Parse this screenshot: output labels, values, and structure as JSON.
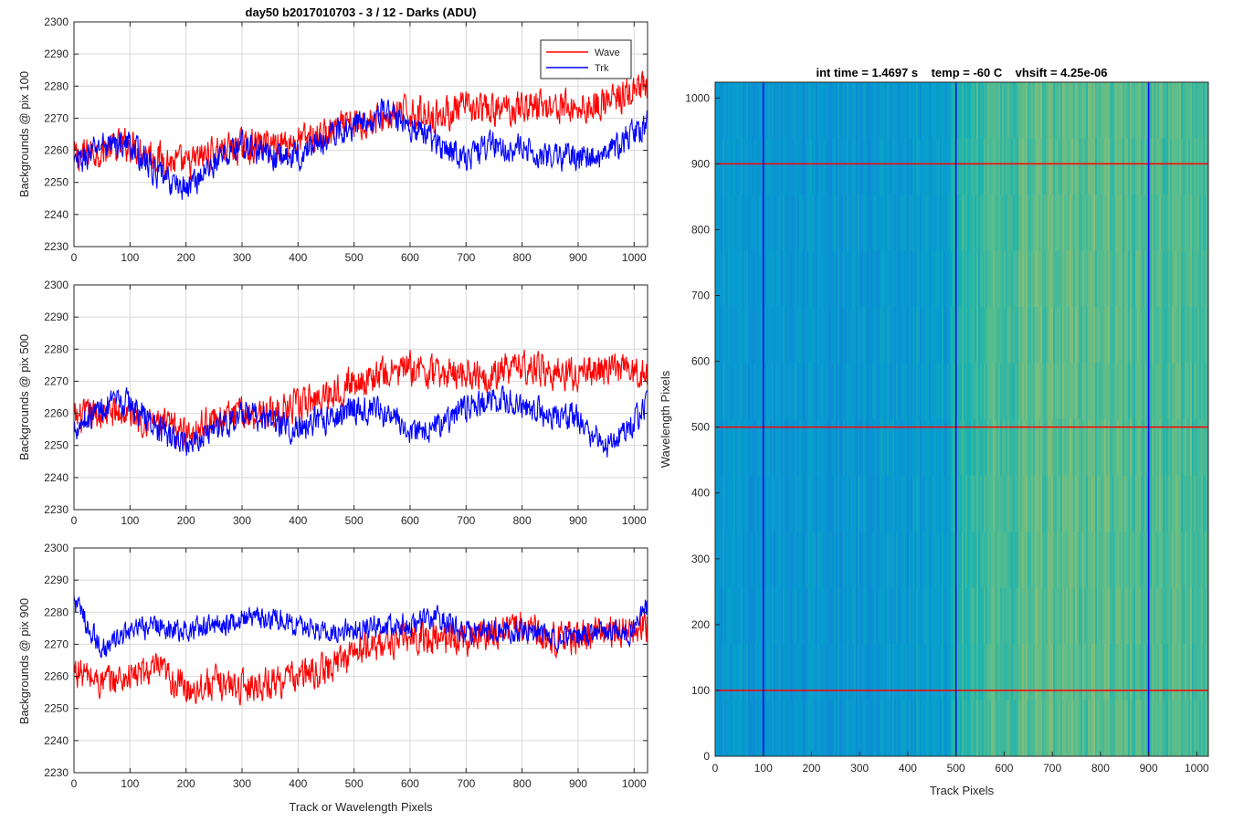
{
  "colors": {
    "wave": "#ff0000",
    "trk": "#0000ff",
    "grid": "#d9d9d9",
    "axes": "#262626"
  },
  "chart_data": [
    {
      "type": "line",
      "title": "day50 b2017010703 - 3 / 12 - Darks (ADU)",
      "xlabel": "",
      "ylabel": "Backgrounds @ pix 100",
      "xlim": [
        0,
        1024
      ],
      "ylim": [
        2230,
        2300
      ],
      "xticks": [
        0,
        100,
        200,
        300,
        400,
        500,
        600,
        700,
        800,
        900,
        1000
      ],
      "yticks": [
        2230,
        2240,
        2250,
        2260,
        2270,
        2280,
        2290,
        2300
      ],
      "grid": true,
      "legend": {
        "position": "top-right",
        "entries": [
          "Wave",
          "Trk"
        ]
      },
      "series": [
        {
          "name": "Wave",
          "color": "#ff0000",
          "x": [
            0,
            50,
            100,
            150,
            200,
            250,
            300,
            350,
            400,
            450,
            500,
            550,
            600,
            650,
            700,
            750,
            800,
            850,
            900,
            950,
            1000,
            1024
          ],
          "y": [
            2258,
            2260,
            2262,
            2258,
            2255,
            2260,
            2261,
            2262,
            2263,
            2265,
            2268,
            2270,
            2272,
            2271,
            2273,
            2272,
            2274,
            2274,
            2273,
            2275,
            2278,
            2279
          ],
          "noise": 7
        },
        {
          "name": "Trk",
          "color": "#0000ff",
          "x": [
            0,
            50,
            100,
            150,
            200,
            250,
            300,
            350,
            400,
            450,
            500,
            550,
            600,
            650,
            700,
            750,
            800,
            850,
            900,
            950,
            1000,
            1024
          ],
          "y": [
            2255,
            2262,
            2262,
            2252,
            2248,
            2256,
            2262,
            2258,
            2258,
            2264,
            2268,
            2272,
            2268,
            2262,
            2258,
            2262,
            2260,
            2258,
            2258,
            2258,
            2266,
            2268
          ],
          "noise": 6
        }
      ]
    },
    {
      "type": "line",
      "title": "",
      "xlabel": "",
      "ylabel": "Backgrounds @ pix 500",
      "xlim": [
        0,
        1024
      ],
      "ylim": [
        2230,
        2300
      ],
      "xticks": [
        0,
        100,
        200,
        300,
        400,
        500,
        600,
        700,
        800,
        900,
        1000
      ],
      "yticks": [
        2230,
        2240,
        2250,
        2260,
        2270,
        2280,
        2290,
        2300
      ],
      "grid": true,
      "series": [
        {
          "name": "Wave",
          "color": "#ff0000",
          "x": [
            0,
            50,
            100,
            150,
            200,
            250,
            300,
            350,
            400,
            450,
            500,
            550,
            600,
            650,
            700,
            750,
            800,
            850,
            900,
            950,
            1000,
            1024
          ],
          "y": [
            2258,
            2260,
            2260,
            2257,
            2254,
            2258,
            2260,
            2260,
            2262,
            2266,
            2270,
            2272,
            2274,
            2272,
            2273,
            2272,
            2275,
            2273,
            2272,
            2274,
            2273,
            2272
          ],
          "noise": 7
        },
        {
          "name": "Trk",
          "color": "#0000ff",
          "x": [
            0,
            50,
            100,
            150,
            200,
            250,
            300,
            350,
            400,
            450,
            500,
            550,
            600,
            650,
            700,
            750,
            800,
            850,
            900,
            950,
            1000,
            1024
          ],
          "y": [
            2256,
            2262,
            2263,
            2255,
            2250,
            2256,
            2259,
            2258,
            2255,
            2258,
            2262,
            2260,
            2255,
            2256,
            2262,
            2264,
            2262,
            2260,
            2258,
            2250,
            2258,
            2262
          ],
          "noise": 6
        }
      ]
    },
    {
      "type": "line",
      "title": "",
      "xlabel": "Track or Wavelength Pixels",
      "ylabel": "Backgrounds @ pix 900",
      "xlim": [
        0,
        1024
      ],
      "ylim": [
        2230,
        2300
      ],
      "xticks": [
        0,
        100,
        200,
        300,
        400,
        500,
        600,
        700,
        800,
        900,
        1000
      ],
      "yticks": [
        2230,
        2240,
        2250,
        2260,
        2270,
        2280,
        2290,
        2300
      ],
      "grid": true,
      "series": [
        {
          "name": "Wave",
          "color": "#ff0000",
          "x": [
            0,
            50,
            100,
            150,
            200,
            250,
            300,
            350,
            400,
            450,
            500,
            550,
            600,
            650,
            700,
            750,
            800,
            850,
            900,
            950,
            1000,
            1024
          ],
          "y": [
            2262,
            2258,
            2260,
            2262,
            2256,
            2258,
            2257,
            2258,
            2260,
            2262,
            2268,
            2270,
            2272,
            2272,
            2272,
            2274,
            2276,
            2272,
            2272,
            2274,
            2274,
            2276
          ],
          "noise": 7
        },
        {
          "name": "Trk",
          "color": "#0000ff",
          "x": [
            0,
            50,
            100,
            150,
            200,
            250,
            300,
            350,
            400,
            450,
            500,
            550,
            600,
            650,
            700,
            750,
            800,
            850,
            900,
            950,
            1000,
            1024
          ],
          "y": [
            2284,
            2268,
            2274,
            2276,
            2274,
            2276,
            2278,
            2278,
            2276,
            2274,
            2275,
            2276,
            2276,
            2278,
            2274,
            2274,
            2274,
            2272,
            2272,
            2274,
            2274,
            2282
          ],
          "noise": 5
        }
      ]
    },
    {
      "type": "heatmap",
      "title": "int time = 1.4697 s    temp = -60 C    vhsift = 4.25e-06",
      "xlabel": "Track Pixels",
      "ylabel": "Wavelength Pixels",
      "xlim": [
        0,
        1024
      ],
      "ylim": [
        0,
        1024
      ],
      "xticks": [
        0,
        100,
        200,
        300,
        400,
        500,
        600,
        700,
        800,
        900,
        1000
      ],
      "yticks": [
        0,
        100,
        200,
        300,
        400,
        500,
        600,
        700,
        800,
        900,
        1000
      ],
      "colormap": "parula",
      "column_profile": {
        "x": [
          0,
          100,
          200,
          300,
          400,
          480,
          500,
          520,
          600,
          700,
          800,
          900,
          1000,
          1024
        ],
        "level": [
          0.4,
          0.4,
          0.4,
          0.4,
          0.41,
          0.44,
          0.52,
          0.56,
          0.6,
          0.62,
          0.62,
          0.6,
          0.6,
          0.58
        ]
      },
      "markers": {
        "vertical_lines": {
          "color": "#0000ff",
          "x": [
            100,
            500,
            900
          ]
        },
        "horizontal_lines": {
          "color": "#ff0000",
          "y": [
            100,
            500,
            900
          ]
        }
      }
    }
  ]
}
